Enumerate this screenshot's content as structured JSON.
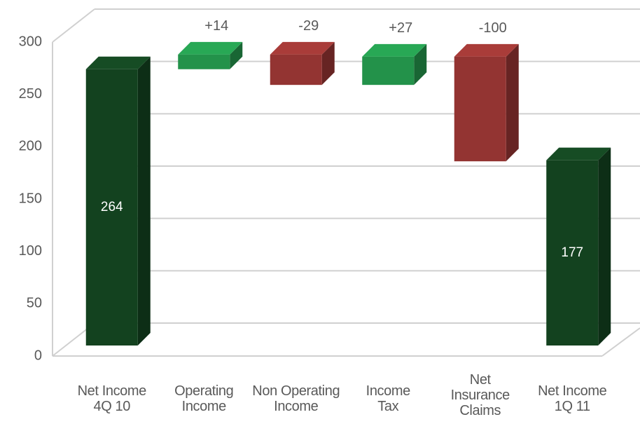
{
  "chart_data": {
    "type": "waterfall",
    "categories": [
      "Net Income\n4Q 10",
      "Operating\nIncome",
      "Non Operating\nIncome",
      "Income\nTax",
      "Net\nInsurance\nClaims",
      "Net Income\n1Q 11"
    ],
    "values": [
      264,
      14,
      -29,
      27,
      -100,
      177
    ],
    "value_labels": [
      "264",
      "+14",
      "-29",
      "+27",
      "-100",
      "177"
    ],
    "colors": [
      "#13421f",
      "#23924a",
      "#933432",
      "#23924a",
      "#933432",
      "#13421f"
    ],
    "ylim": [
      0,
      300
    ],
    "yticks": [
      0,
      50,
      100,
      150,
      200,
      250,
      300
    ],
    "grid": true
  }
}
